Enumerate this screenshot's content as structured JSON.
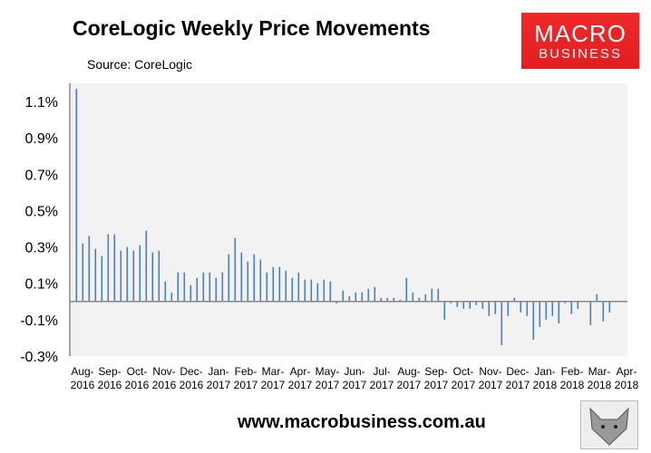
{
  "header": {
    "title": "CoreLogic Weekly Price Movements",
    "source": "Source: CoreLogic"
  },
  "logo": {
    "line1": "MACRO",
    "line2": "BUSINESS",
    "color": "#e8262a"
  },
  "footer": {
    "url": "www.macrobusiness.com.au",
    "fox_icon": "fox-logo-icon"
  },
  "chart_data": {
    "type": "bar",
    "title": "CoreLogic Weekly Price Movements",
    "ylim": [
      -0.3,
      1.2
    ],
    "yticks": [
      1.1,
      0.9,
      0.7,
      0.5,
      0.3,
      0.1,
      -0.1,
      -0.3
    ],
    "ytick_labels": [
      "1.1%",
      "0.9%",
      "0.7%",
      "0.5%",
      "0.3%",
      "0.1%",
      "-0.1%",
      "-0.3%"
    ],
    "xtick_labels": [
      [
        "Aug-",
        "2016"
      ],
      [
        "Sep-",
        "2016"
      ],
      [
        "Oct-",
        "2016"
      ],
      [
        "Nov-",
        "2016"
      ],
      [
        "Dec-",
        "2016"
      ],
      [
        "Jan-",
        "2017"
      ],
      [
        "Feb-",
        "2017"
      ],
      [
        "Mar-",
        "2017"
      ],
      [
        "Apr-",
        "2017"
      ],
      [
        "May-",
        "2017"
      ],
      [
        "Jun-",
        "2017"
      ],
      [
        "Jul-",
        "2017"
      ],
      [
        "Aug-",
        "2017"
      ],
      [
        "Sep-",
        "2017"
      ],
      [
        "Oct-",
        "2017"
      ],
      [
        "Nov-",
        "2017"
      ],
      [
        "Dec-",
        "2017"
      ],
      [
        "Jan-",
        "2018"
      ],
      [
        "Feb-",
        "2018"
      ],
      [
        "Mar-",
        "2018"
      ],
      [
        "Apr-",
        "2018"
      ]
    ],
    "bar_color": "#4a7ebb",
    "plot_background": "#f2f2f2",
    "grid": false,
    "values": [
      1.17,
      0.32,
      0.36,
      0.29,
      0.25,
      0.37,
      0.37,
      0.28,
      0.3,
      0.28,
      0.31,
      0.39,
      0.27,
      0.28,
      0.11,
      0.05,
      0.16,
      0.16,
      0.09,
      0.13,
      0.16,
      0.16,
      0.13,
      0.16,
      0.26,
      0.35,
      0.27,
      0.22,
      0.26,
      0.23,
      0.16,
      0.19,
      0.19,
      0.17,
      0.13,
      0.16,
      0.12,
      0.12,
      0.1,
      0.12,
      0.11,
      -0.01,
      0.06,
      0.03,
      0.05,
      0.05,
      0.07,
      0.08,
      0.02,
      0.02,
      0.02,
      0.01,
      0.13,
      0.05,
      0.02,
      0.04,
      0.07,
      0.07,
      -0.1,
      -0.01,
      -0.03,
      -0.04,
      -0.04,
      -0.02,
      -0.04,
      -0.08,
      -0.07,
      -0.24,
      -0.08,
      0.02,
      -0.06,
      -0.08,
      -0.21,
      -0.14,
      -0.1,
      -0.08,
      -0.12,
      -0.01,
      -0.07,
      -0.04,
      0,
      -0.13,
      0.04,
      -0.11,
      -0.06
    ]
  }
}
